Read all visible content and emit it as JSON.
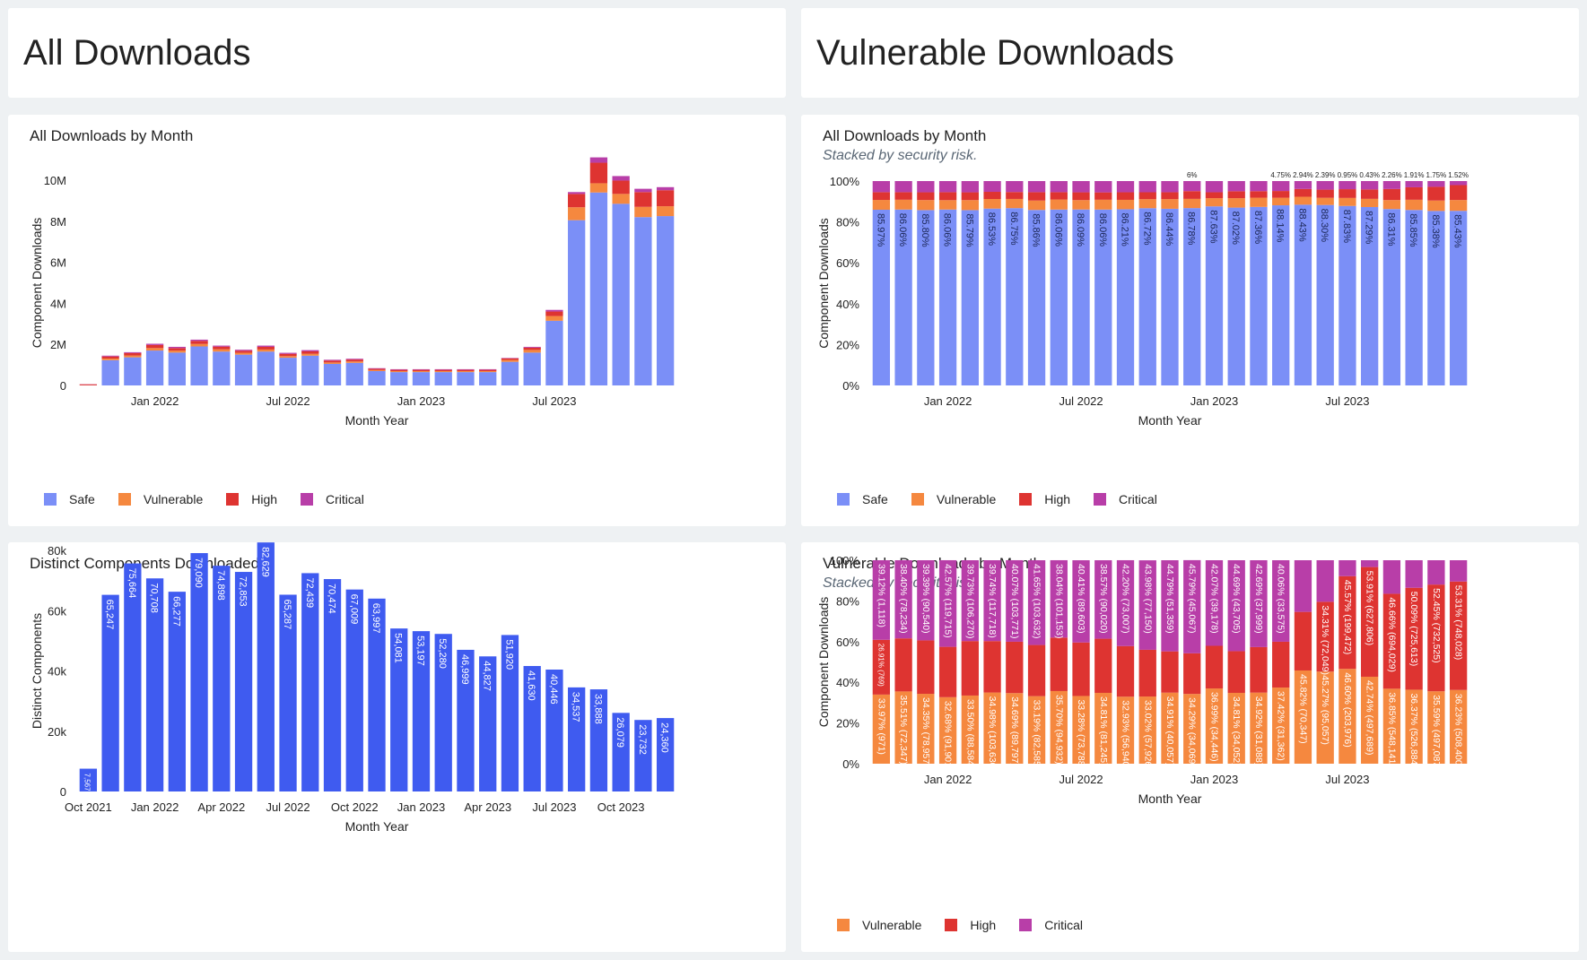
{
  "colors": {
    "safe": "#7b8ff7",
    "vulnerable": "#f5883f",
    "high": "#de3431",
    "critical": "#b83ea8",
    "distinct": "#3f5bf0"
  },
  "headers": {
    "left": "All Downloads",
    "right": "Vulnerable Downloads"
  },
  "legend": {
    "safe": "Safe",
    "vulnerable": "Vulnerable",
    "high": "High",
    "critical": "Critical"
  },
  "panels": {
    "p1": {
      "title": "All Downloads by Month",
      "subtitle": ""
    },
    "p2": {
      "title": "All Downloads by Month",
      "subtitle": "Stacked by security risk."
    },
    "p3": {
      "title": "Distinct Components Downloaded",
      "subtitle": ""
    },
    "p4": {
      "title": "Vulnerable Downloads by Month",
      "subtitle": "Stacked by security risk."
    }
  },
  "chart_data": [
    {
      "id": "p1",
      "type": "bar",
      "stacked": true,
      "ylabel": "Component Downloads",
      "xlabel": "Month Year",
      "ylim": [
        0,
        11000000
      ],
      "yticks": [
        {
          "v": 0,
          "label": "0"
        },
        {
          "v": 2000000,
          "label": "2M"
        },
        {
          "v": 4000000,
          "label": "4M"
        },
        {
          "v": 6000000,
          "label": "6M"
        },
        {
          "v": 8000000,
          "label": "8M"
        },
        {
          "v": 10000000,
          "label": "10M"
        }
      ],
      "xticks": [
        {
          "i": 3,
          "label": "Jan 2022"
        },
        {
          "i": 9,
          "label": "Jul 2022"
        },
        {
          "i": 15,
          "label": "Jan 2023"
        },
        {
          "i": 21,
          "label": "Jul 2023"
        }
      ],
      "series": [
        {
          "name": "Safe",
          "color": "safe",
          "values": [
            5000,
            1230000,
            1370000,
            1700000,
            1600000,
            1900000,
            1650000,
            1500000,
            1650000,
            1350000,
            1450000,
            1050000,
            1100000,
            700000,
            650000,
            650000,
            650000,
            650000,
            650000,
            1150000,
            1600000,
            3150000,
            8050000,
            9400000,
            8850000,
            8200000,
            8250000
          ]
        },
        {
          "name": "Vulnerable",
          "color": "vulnerable",
          "values": [
            1000,
            80000,
            90000,
            120000,
            100000,
            120000,
            110000,
            90000,
            100000,
            80000,
            90000,
            70000,
            70000,
            50000,
            50000,
            50000,
            50000,
            50000,
            50000,
            90000,
            130000,
            230000,
            630000,
            450000,
            480000,
            500000,
            480000
          ]
        },
        {
          "name": "High",
          "color": "high",
          "values": [
            50000,
            100000,
            120000,
            150000,
            120000,
            150000,
            130000,
            100000,
            130000,
            110000,
            120000,
            90000,
            90000,
            60000,
            60000,
            60000,
            60000,
            60000,
            60000,
            80000,
            110000,
            220000,
            650000,
            1000000,
            650000,
            720000,
            780000
          ]
        },
        {
          "name": "Critical",
          "color": "critical",
          "values": [
            5000,
            40000,
            40000,
            60000,
            60000,
            60000,
            50000,
            50000,
            60000,
            50000,
            60000,
            40000,
            40000,
            30000,
            30000,
            30000,
            30000,
            30000,
            30000,
            20000,
            40000,
            80000,
            90000,
            260000,
            220000,
            160000,
            150000
          ]
        }
      ]
    },
    {
      "id": "p2",
      "type": "bar",
      "stacked": true,
      "percent": true,
      "ylabel": "Component Downloads",
      "xlabel": "Month Year",
      "ylim": [
        0,
        100
      ],
      "yticks": [
        {
          "v": 0,
          "label": "0%"
        },
        {
          "v": 20,
          "label": "20%"
        },
        {
          "v": 40,
          "label": "40%"
        },
        {
          "v": 60,
          "label": "60%"
        },
        {
          "v": 80,
          "label": "80%"
        },
        {
          "v": 100,
          "label": "100%"
        }
      ],
      "xticks": [
        {
          "i": 3,
          "label": "Jan 2022"
        },
        {
          "i": 9,
          "label": "Jul 2022"
        },
        {
          "i": 15,
          "label": "Jan 2023"
        },
        {
          "i": 21,
          "label": "Jul 2023"
        }
      ],
      "safe_labels": [
        "85.97%",
        "86.06%",
        "85.80%",
        "86.06%",
        "85.79%",
        "86.53%",
        "86.75%",
        "85.86%",
        "86.06%",
        "86.09%",
        "86.06%",
        "86.21%",
        "86.72%",
        "86.44%",
        "86.78%",
        "87.63%",
        "87.02%",
        "87.36%",
        "88.14%",
        "88.43%",
        "88.30%",
        "87.83%",
        "87.29%",
        "86.31%",
        "85.85%",
        "85.38%",
        "85.43%"
      ],
      "top_labels": [
        "",
        "",
        "",
        "",
        "",
        "",
        "",
        "",
        "",
        "",
        "",
        "",
        "",
        "",
        "6%",
        "",
        "",
        "",
        "4.75%",
        "2.94%",
        "2.39%",
        "0.95%",
        "0.43%",
        "2.26%",
        "1.91%",
        "1.75%",
        "1.52%"
      ],
      "series": [
        {
          "name": "Safe",
          "color": "safe",
          "values": [
            85.97,
            86.06,
            85.8,
            86.06,
            85.79,
            86.53,
            86.75,
            85.86,
            86.06,
            86.09,
            86.06,
            86.21,
            86.72,
            86.44,
            86.78,
            87.63,
            87.02,
            87.36,
            88.14,
            88.43,
            88.3,
            87.83,
            87.29,
            86.31,
            85.85,
            85.38,
            85.43
          ]
        },
        {
          "name": "Vulnerable",
          "color": "vulnerable",
          "values": [
            4.8,
            4.8,
            4.9,
            4.6,
            4.9,
            4.7,
            4.5,
            4.6,
            4.9,
            4.6,
            4.8,
            4.6,
            4.4,
            4.7,
            4.5,
            4.0,
            4.6,
            4.5,
            3.7,
            3.9,
            3.5,
            3.9,
            4.0,
            4.4,
            5.0,
            5.1,
            5.3
          ]
        },
        {
          "name": "High",
          "color": "high",
          "values": [
            3.8,
            3.7,
            3.8,
            3.9,
            3.8,
            3.5,
            3.4,
            4.1,
            3.6,
            3.8,
            3.6,
            3.7,
            3.4,
            3.4,
            3.8,
            2.9,
            3.4,
            3.2,
            3.3,
            3.8,
            4.0,
            4.3,
            4.6,
            5.4,
            6.1,
            6.7,
            7.3
          ]
        },
        {
          "name": "Critical",
          "color": "critical",
          "values": [
            5.43,
            5.44,
            5.5,
            5.44,
            5.51,
            5.27,
            5.35,
            5.44,
            5.44,
            5.51,
            5.54,
            5.49,
            5.48,
            5.46,
            4.92,
            5.47,
            4.98,
            4.94,
            4.86,
            3.87,
            4.2,
            3.97,
            4.11,
            3.89,
            3.05,
            2.82,
            1.97
          ]
        }
      ]
    },
    {
      "id": "p3",
      "type": "bar",
      "ylabel": "Distinct Components",
      "xlabel": "Month Year",
      "ylim": [
        0,
        85000
      ],
      "yticks": [
        {
          "v": 0,
          "label": "0"
        },
        {
          "v": 20000,
          "label": "20k"
        },
        {
          "v": 40000,
          "label": "40k"
        },
        {
          "v": 60000,
          "label": "60k"
        },
        {
          "v": 80000,
          "label": "80k"
        }
      ],
      "xticks": [
        {
          "i": 0,
          "label": "Oct 2021"
        },
        {
          "i": 3,
          "label": "Jan 2022"
        },
        {
          "i": 6,
          "label": "Apr 2022"
        },
        {
          "i": 9,
          "label": "Jul 2022"
        },
        {
          "i": 12,
          "label": "Oct 2022"
        },
        {
          "i": 15,
          "label": "Jan 2023"
        },
        {
          "i": 18,
          "label": "Apr 2023"
        },
        {
          "i": 21,
          "label": "Jul 2023"
        },
        {
          "i": 24,
          "label": "Oct 2023"
        }
      ],
      "series": [
        {
          "name": "",
          "color": "distinct",
          "values": [
            7567,
            65247,
            75664,
            70708,
            66277,
            79090,
            74898,
            72853,
            82629,
            65287,
            72439,
            70474,
            67009,
            63997,
            54081,
            53197,
            52280,
            46999,
            44827,
            51920,
            41630,
            40446,
            34537,
            33888,
            26079,
            23732,
            24360
          ]
        }
      ],
      "labels": [
        "7,567",
        "65,247",
        "75,664",
        "70,708",
        "66,277",
        "79,090",
        "74,898",
        "72,853",
        "82,629",
        "65,287",
        "72,439",
        "70,474",
        "67,009",
        "63,997",
        "54,081",
        "53,197",
        "52,280",
        "46,999",
        "44,827",
        "51,920",
        "41,630",
        "40,446",
        "34,537",
        "33,888",
        "26,079",
        "23,732",
        "24,360"
      ]
    },
    {
      "id": "p4",
      "type": "bar",
      "stacked": true,
      "percent": true,
      "ylabel": "Component Downloads",
      "xlabel": "Month Year",
      "ylim": [
        0,
        100
      ],
      "yticks": [
        {
          "v": 0,
          "label": "0%"
        },
        {
          "v": 20,
          "label": "20%"
        },
        {
          "v": 40,
          "label": "40%"
        },
        {
          "v": 60,
          "label": "60%"
        },
        {
          "v": 80,
          "label": "80%"
        },
        {
          "v": 100,
          "label": "100%"
        }
      ],
      "xticks": [
        {
          "i": 3,
          "label": "Jan 2022"
        },
        {
          "i": 9,
          "label": "Jul 2022"
        },
        {
          "i": 15,
          "label": "Jan 2023"
        },
        {
          "i": 21,
          "label": "Jul 2023"
        }
      ],
      "series": [
        {
          "name": "Vulnerable",
          "color": "vulnerable",
          "values": [
            33.97,
            35.51,
            34.35,
            32.68,
            33.5,
            34.98,
            34.69,
            33.19,
            35.7,
            33.28,
            34.81,
            32.93,
            33.02,
            34.91,
            34.29,
            36.99,
            34.81,
            34.92,
            37.42,
            45.82,
            45.27,
            46.6,
            42.74,
            36.85,
            36.37,
            35.59,
            36.23
          ],
          "labels": [
            "33.97% (971)",
            "35.51% (72,347)",
            "34.35% (78,957)",
            "32.68% (91,901)",
            "33.50% (88,584)",
            "34.98% (103,630)",
            "34.69% (89,797)",
            "33.19% (82,585)",
            "35.70% (94,932)",
            "33.28% (73,788)",
            "34.81% (81,245)",
            "32.93% (56,940)",
            "33.02% (57,926)",
            "34.91% (40,057)",
            "34.29% (34,069)",
            "36.99% (34,446)",
            "34.81% (34,052)",
            "34.92% (31,088)",
            "37.42% (31,362)",
            "45.82% (70,347)",
            "45.27% (95,057)",
            "46.60% (203,976)",
            "42.74% (497,689)",
            "36.85% (548,141)",
            "36.37% (526,884)",
            "35.59% (497,087)",
            "36.23% (508,400)"
          ]
        },
        {
          "name": "High",
          "color": "high",
          "values": [
            26.91,
            26.09,
            26.26,
            24.76,
            26.77,
            25.28,
            25.25,
            25.15,
            26.27,
            26.3,
            26.61,
            24.88,
            22.96,
            20.3,
            19.96,
            20.94,
            20.5,
            22.39,
            22.52,
            28.79,
            34.31,
            45.57,
            53.91,
            46.66,
            50.09,
            52.45,
            53.31
          ],
          "labels": [
            "26.91% (769)",
            "",
            "",
            "",
            "",
            "",
            "",
            "",
            "",
            "",
            "",
            "",
            "",
            "",
            "",
            "",
            "",
            "",
            "",
            "",
            "34.31% (72,049)",
            "45.57% (199,472)",
            "53.91% (627,806)",
            "46.66% (694,029)",
            "50.09% (725,613)",
            "52.45% (732,525)",
            "53.31% (748,028)"
          ]
        },
        {
          "name": "Critical",
          "color": "critical",
          "values": [
            39.12,
            38.4,
            39.39,
            42.57,
            39.73,
            39.74,
            40.07,
            41.65,
            38.04,
            40.41,
            38.57,
            42.2,
            43.98,
            44.79,
            45.79,
            42.07,
            44.69,
            42.69,
            40.06,
            25.39,
            20.42,
            7.83,
            3.35,
            16.49,
            13.54,
            11.96,
            10.46
          ],
          "labels": [
            "39.12% (1,118)",
            "38.40% (78,234)",
            "39.39% (90,540)",
            "42.57% (119,715)",
            "39.73% (106,270)",
            "39.74% (117,718)",
            "40.07% (103,771)",
            "41.65% (103,632)",
            "38.04% (101,153)",
            "40.41% (89,603)",
            "38.57% (90,020)",
            "42.20% (73,007)",
            "43.98% (77,150)",
            "44.79% (51,359)",
            "45.79% (45,067)",
            "42.07% (39,178)",
            "44.69% (43,705)",
            "42.69% (37,999)",
            "40.06% (33,575)",
            "",
            "",
            "",
            "",
            "",
            "",
            "",
            ""
          ]
        }
      ]
    }
  ]
}
